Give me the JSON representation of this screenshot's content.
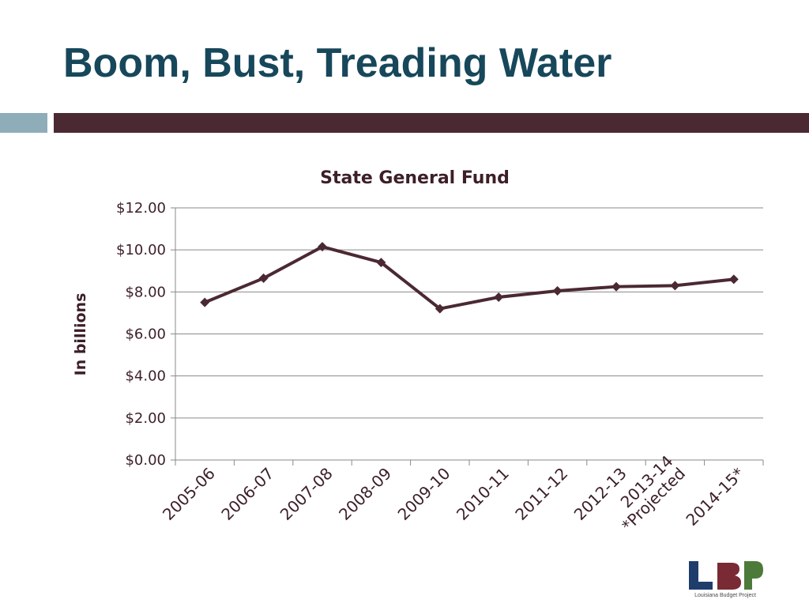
{
  "slide": {
    "title": "Boom, Bust, Treading Water",
    "colors": {
      "title": "#17475a",
      "rule_left": "#8fadb8",
      "rule_right": "#4b2932"
    }
  },
  "chart_data": {
    "type": "line",
    "title": "State General Fund",
    "xlabel": "",
    "ylabel": "In billions",
    "categories": [
      "2005-06",
      "2006-07",
      "2007-08",
      "2008-09",
      "2009-10",
      "2010-11",
      "2011-12",
      "2012-13",
      "2013-14 *Projected",
      "2014-15*"
    ],
    "category_lines": [
      [
        "2005-06"
      ],
      [
        "2006-07"
      ],
      [
        "2007-08"
      ],
      [
        "2008-09"
      ],
      [
        "2009-10"
      ],
      [
        "2010-11"
      ],
      [
        "2011-12"
      ],
      [
        "2012-13"
      ],
      [
        "2013-14",
        "*Projected"
      ],
      [
        "2014-15*"
      ]
    ],
    "series": [
      {
        "values": [
          7.5,
          8.65,
          10.15,
          9.4,
          7.2,
          7.75,
          8.05,
          8.25,
          8.3,
          8.6
        ],
        "color": "#4b2932"
      }
    ],
    "ylim": [
      0,
      12
    ],
    "yticks": [
      0,
      2,
      4,
      6,
      8,
      10,
      12
    ],
    "ytick_labels": [
      "$0.00",
      "$2.00",
      "$4.00",
      "$6.00",
      "$8.00",
      "$10.00",
      "$12.00"
    ],
    "grid": true,
    "legend": "none",
    "marker": "diamond"
  },
  "logo": {
    "name": "lbp-logo",
    "caption": "Louisiana Budget Project",
    "colors": {
      "l": "#1f3d6b",
      "b": "#7a2a35",
      "p": "#4c7a3a"
    }
  }
}
